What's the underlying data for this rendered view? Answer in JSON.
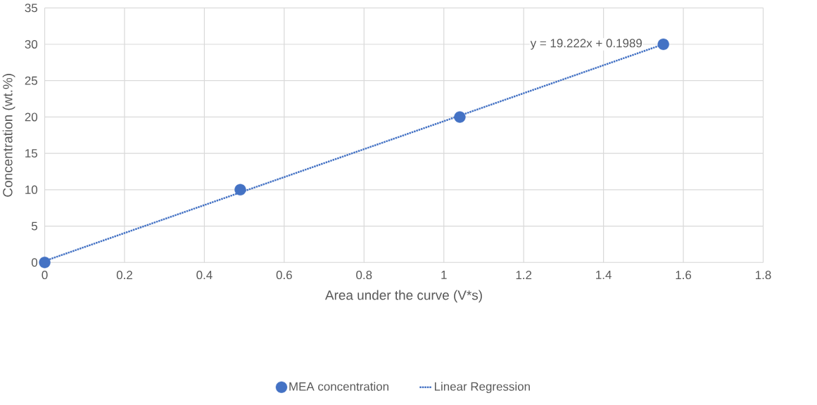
{
  "chart_data": {
    "type": "scatter",
    "xlabel": "Area under the curve (V*s)",
    "ylabel": "Concentration (wt.%)",
    "annotations": [
      "y = 19.222x + 0.1989"
    ],
    "series": [
      {
        "name": "MEA concentration",
        "color": "#4472c4",
        "marker": "circle",
        "x": [
          0,
          0.49,
          1.04,
          1.55
        ],
        "values": [
          0,
          10,
          20,
          30
        ]
      },
      {
        "name": "Linear Regression",
        "type": "line",
        "color": "#4472c4",
        "line_style": "dotted",
        "marker": "none",
        "x": [
          0,
          1.55
        ],
        "values": [
          0.2,
          30
        ]
      }
    ],
    "xlim": [
      0,
      1.8
    ],
    "xticks": [
      0,
      0.2,
      0.4,
      0.6,
      0.8,
      1,
      1.2,
      1.4,
      1.6,
      1.8
    ],
    "ylim": [
      0,
      35
    ],
    "yticks": [
      0,
      5,
      10,
      15,
      20,
      25,
      30,
      35
    ],
    "grid": true,
    "legend": "bottom"
  }
}
